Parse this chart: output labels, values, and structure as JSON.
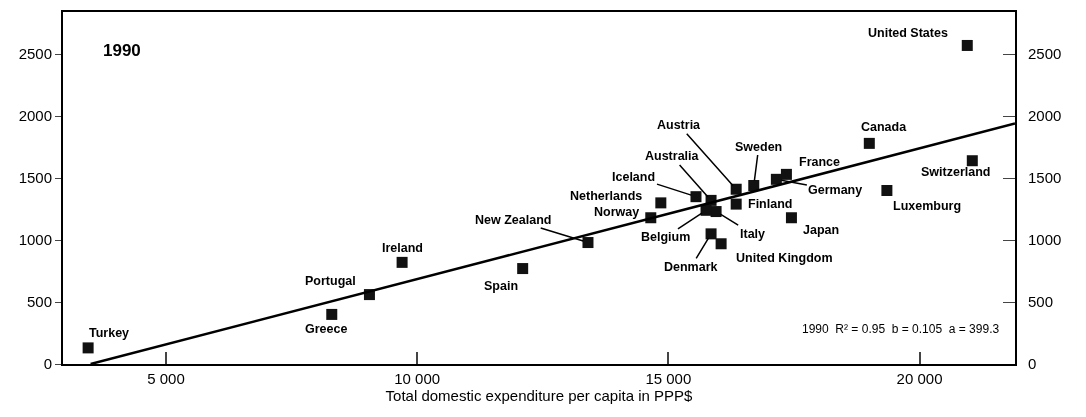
{
  "chart_data": {
    "type": "scatter",
    "title": "1990",
    "xlabel": "Total domestic expenditure per capita in PPP$",
    "xlim": [
      2950,
      21900
    ],
    "ylim": [
      0,
      2840
    ],
    "y2lim": [
      0,
      2840
    ],
    "xticks": [
      {
        "value": 5000,
        "label": "5 000"
      },
      {
        "value": 10000,
        "label": "10 000"
      },
      {
        "value": 15000,
        "label": "15 000"
      },
      {
        "value": 20000,
        "label": "20 000"
      }
    ],
    "yticks": [
      0,
      500,
      1000,
      1500,
      2000,
      2500
    ],
    "y2ticks": [
      0,
      500,
      1000,
      1500,
      2000,
      2500
    ],
    "grid": false,
    "series": [
      {
        "type": "scatter",
        "marker": "square",
        "color": "#111111",
        "x": [
          3450,
          8300,
          9050,
          9700,
          12100,
          13400,
          14650,
          14850,
          15550,
          15850,
          16350,
          16700,
          17350,
          17150,
          16350,
          17450,
          15950,
          15750,
          15850,
          16050,
          19000,
          19350,
          21050,
          20950
        ],
        "values": [
          130,
          400,
          560,
          820,
          770,
          980,
          1180,
          1300,
          1350,
          1320,
          1410,
          1440,
          1530,
          1490,
          1290,
          1180,
          1230,
          1240,
          1050,
          970,
          1780,
          1400,
          1640,
          2570
        ]
      },
      {
        "type": "line",
        "marker": "none",
        "color": "#000000",
        "x": [
          3500,
          21900
        ],
        "values": [
          0,
          1940
        ]
      }
    ],
    "annotations": [
      {
        "text": "Turkey",
        "x": 3450,
        "y": 130
      },
      {
        "text": "Greece",
        "x": 8300,
        "y": 400
      },
      {
        "text": "Portugal",
        "x": 9050,
        "y": 560
      },
      {
        "text": "Ireland",
        "x": 9700,
        "y": 820
      },
      {
        "text": "Spain",
        "x": 12100,
        "y": 770
      },
      {
        "text": "New Zealand",
        "x": 13400,
        "y": 980
      },
      {
        "text": "Norway",
        "x": 14650,
        "y": 1180
      },
      {
        "text": "Netherlands",
        "x": 14850,
        "y": 1300
      },
      {
        "text": "Iceland",
        "x": 15550,
        "y": 1350
      },
      {
        "text": "Australia",
        "x": 15850,
        "y": 1320
      },
      {
        "text": "Austria",
        "x": 16350,
        "y": 1410
      },
      {
        "text": "Sweden",
        "x": 16700,
        "y": 1440
      },
      {
        "text": "France",
        "x": 17350,
        "y": 1530
      },
      {
        "text": "Germany",
        "x": 17150,
        "y": 1490
      },
      {
        "text": "Finland",
        "x": 16350,
        "y": 1290
      },
      {
        "text": "Japan",
        "x": 17450,
        "y": 1180
      },
      {
        "text": "Italy",
        "x": 15950,
        "y": 1230
      },
      {
        "text": "Belgium",
        "x": 15750,
        "y": 1240
      },
      {
        "text": "Denmark",
        "x": 15850,
        "y": 1050
      },
      {
        "text": "United Kingdom",
        "x": 16050,
        "y": 970
      },
      {
        "text": "Canada",
        "x": 19000,
        "y": 1780
      },
      {
        "text": "Luxemburg",
        "x": 19350,
        "y": 1400
      },
      {
        "text": "Switzerland",
        "x": 21050,
        "y": 1640
      },
      {
        "text": "United States",
        "x": 20950,
        "y": 2570
      },
      "1990  R² = 0.95  b = 0.105  a = 399.3"
    ]
  }
}
